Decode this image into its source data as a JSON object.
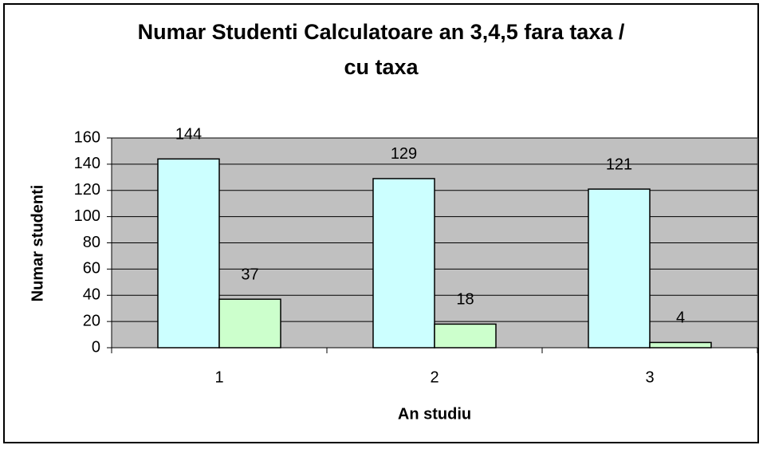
{
  "chart_data": {
    "type": "bar",
    "title": [
      "Numar Studenti Calculatoare an 3,4,5 fara taxa /",
      "cu taxa"
    ],
    "x_label": "An studiu",
    "y_label": "Numar studenti",
    "categories": [
      "1",
      "2",
      "3"
    ],
    "series": [
      {
        "color": "#CCFFFF",
        "values": [
          144,
          129,
          121
        ]
      },
      {
        "color": "#CCFFCC",
        "values": [
          37,
          18,
          4
        ]
      }
    ],
    "ylim": [
      0,
      160
    ],
    "yticks": [
      0,
      20,
      40,
      60,
      80,
      100,
      120,
      140,
      160
    ],
    "grid": true,
    "plot_background": "#C0C0C0"
  }
}
